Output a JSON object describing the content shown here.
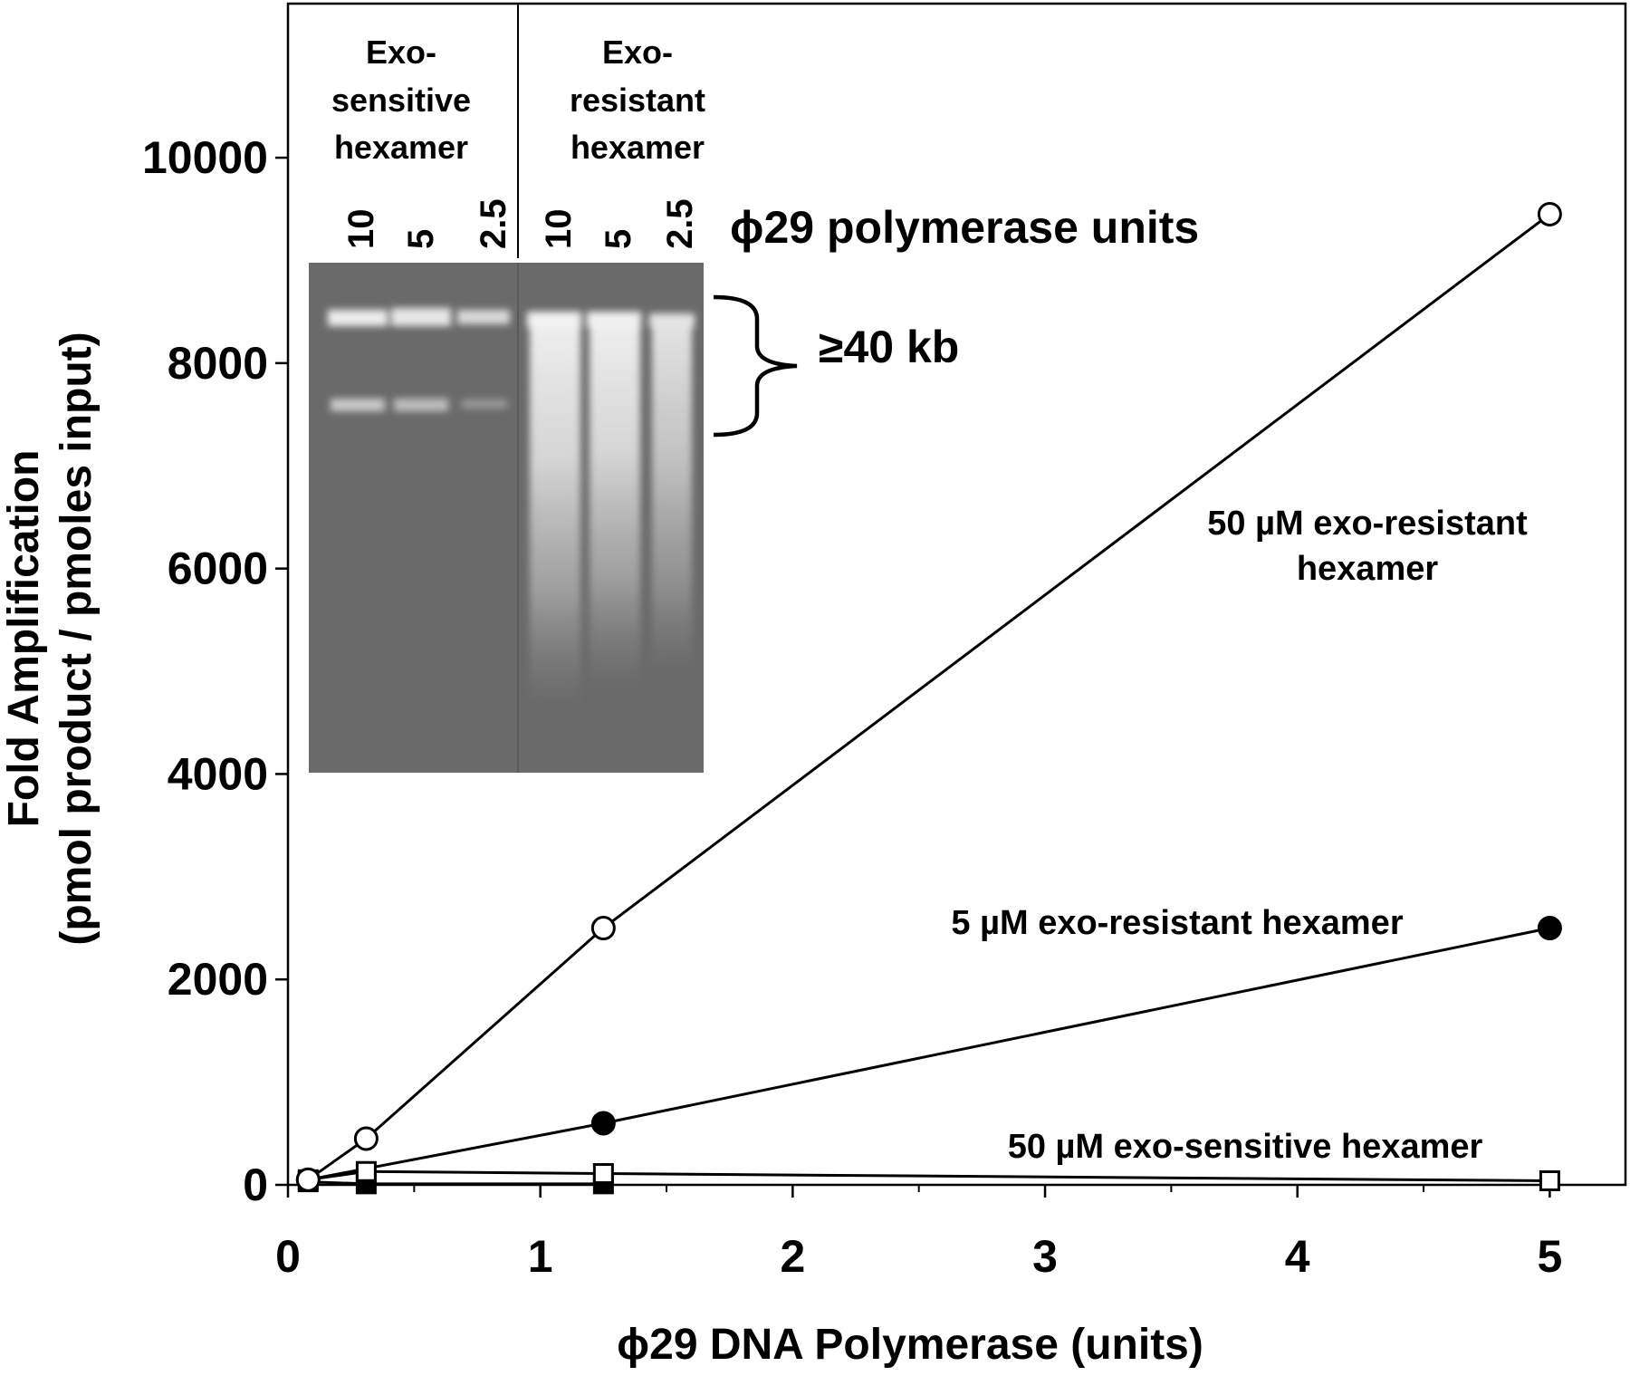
{
  "chart_data": {
    "type": "line",
    "xlabel": "ϕ29 DNA Polymerase (units)",
    "ylabel_line1": "Fold Amplification",
    "ylabel_line2": "(pmol product / pmoles input)",
    "xlim": [
      0,
      5.3
    ],
    "ylim": [
      0,
      11500
    ],
    "x_ticks": [
      0,
      1,
      2,
      3,
      4,
      5
    ],
    "y_ticks": [
      0,
      2000,
      4000,
      6000,
      8000,
      10000
    ],
    "grid": false,
    "series": [
      {
        "name": "50 µM exo-resistant hexamer",
        "label_lines": [
          "50 µM exo-resistant",
          "hexamer"
        ],
        "marker": "open-circle",
        "x": [
          0.08,
          0.31,
          1.25,
          5.0
        ],
        "y": [
          50,
          450,
          2500,
          9450
        ]
      },
      {
        "name": "5 µM exo-resistant hexamer",
        "label_lines": [
          "5 µM exo-resistant hexamer"
        ],
        "marker": "filled-circle",
        "x": [
          0.08,
          1.25,
          5.0
        ],
        "y": [
          50,
          600,
          2500
        ]
      },
      {
        "name": "50 µM exo-sensitive hexamer",
        "label_lines": [
          "50 µM exo-sensitive hexamer"
        ],
        "marker": "open-square",
        "x": [
          0.08,
          0.31,
          1.25,
          5.0
        ],
        "y": [
          50,
          130,
          110,
          40
        ]
      },
      {
        "name": "",
        "label_lines": [],
        "marker": "filled-square",
        "x": [
          0.08,
          0.31,
          1.25
        ],
        "y": [
          30,
          10,
          10
        ]
      }
    ],
    "inset": {
      "group_labels": [
        [
          "Exo-",
          "sensitive",
          "hexamer"
        ],
        [
          "Exo-",
          "resistant",
          "hexamer"
        ]
      ],
      "lane_labels": [
        "10",
        "5",
        "2.5",
        "10",
        "5",
        "2.5"
      ],
      "lanes_title": "ϕ29 polymerase units",
      "size_label": "≥40 kb"
    }
  }
}
